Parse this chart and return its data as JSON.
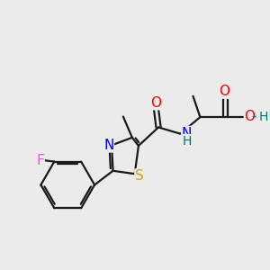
{
  "background_color": "#ebebeb",
  "bond_color": "#1a1a1a",
  "atom_colors": {
    "O": "#ff0000",
    "N": "#0000ff",
    "S": "#ccaa00",
    "F": "#ff44ff",
    "H": "#007070",
    "C": "#1a1a1a"
  }
}
